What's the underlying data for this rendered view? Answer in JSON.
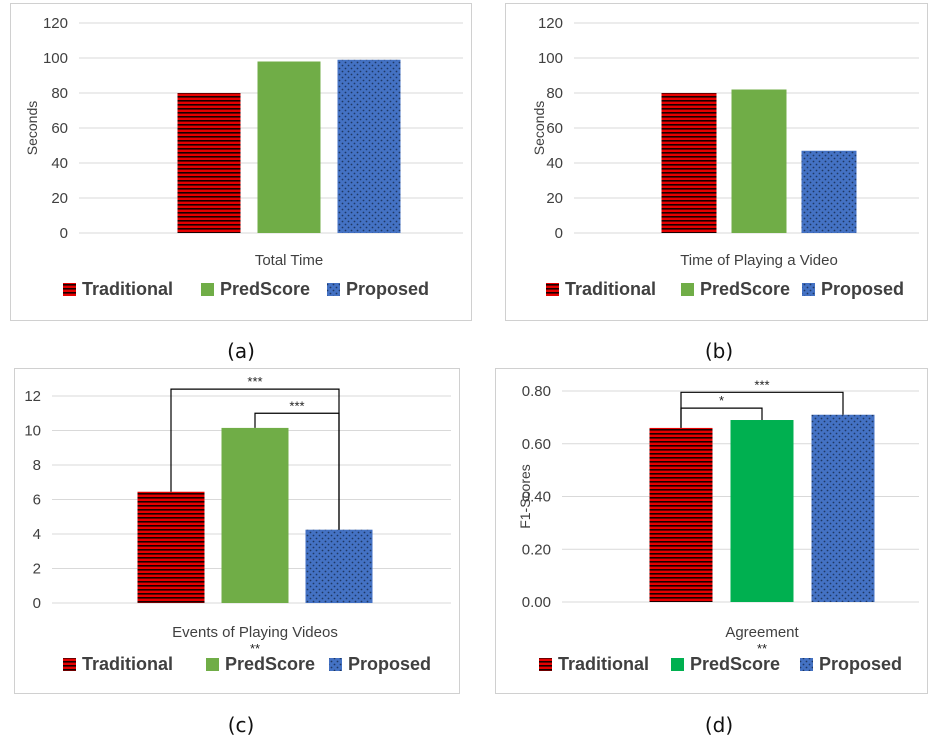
{
  "colors": {
    "traditional": "#e60000",
    "traditional_stripe": "#1a0000",
    "predscore": "#70ad47",
    "predscore_alt": "#00b050",
    "proposed": "#4472c4",
    "proposed_dot": "#1f3864",
    "grid": "#d9d9d9",
    "axis_text": "#404040"
  },
  "captions": [
    "(a)",
    "(b)",
    "(c)",
    "(d)"
  ],
  "chart_data": [
    {
      "type": "bar",
      "panel": "a",
      "categories": [
        "Total Time"
      ],
      "series": [
        {
          "name": "Traditional",
          "values": [
            80
          ]
        },
        {
          "name": "PredScore",
          "values": [
            98
          ]
        },
        {
          "name": "Proposed",
          "values": [
            99
          ]
        }
      ],
      "ylabel": "Seconds",
      "ylim": [
        0,
        120
      ],
      "yticks": [
        "0",
        "20",
        "40",
        "60",
        "80",
        "100",
        "120"
      ],
      "grid": true,
      "legend": "bottom",
      "annotations": []
    },
    {
      "type": "bar",
      "panel": "b",
      "categories": [
        "Time of Playing a Video"
      ],
      "series": [
        {
          "name": "Traditional",
          "values": [
            80
          ]
        },
        {
          "name": "PredScore",
          "values": [
            82
          ]
        },
        {
          "name": "Proposed",
          "values": [
            47
          ]
        }
      ],
      "ylabel": "Seconds",
      "ylim": [
        0,
        120
      ],
      "yticks": [
        "0",
        "20",
        "40",
        "60",
        "80",
        "100",
        "120"
      ],
      "grid": true,
      "legend": "bottom",
      "annotations": []
    },
    {
      "type": "bar",
      "panel": "c",
      "categories": [
        "Events of Playing Videos"
      ],
      "series": [
        {
          "name": "Traditional",
          "values": [
            6.45
          ]
        },
        {
          "name": "PredScore",
          "values": [
            10.15
          ]
        },
        {
          "name": "Proposed",
          "values": [
            4.25
          ]
        }
      ],
      "ylabel": "",
      "ylim": [
        0,
        12
      ],
      "yticks": [
        "0",
        "2",
        "4",
        "6",
        "8",
        "10",
        "12"
      ],
      "grid": true,
      "legend": "bottom",
      "category_note": "**",
      "annotations": [
        {
          "label": "***",
          "from": "Traditional",
          "to": "Proposed",
          "level": 12.4
        },
        {
          "label": "***",
          "from": "PredScore",
          "to": "Proposed",
          "level": 11.0
        }
      ]
    },
    {
      "type": "bar",
      "panel": "d",
      "categories": [
        "Agreement"
      ],
      "series": [
        {
          "name": "Traditional",
          "values": [
            0.66
          ]
        },
        {
          "name": "PredScore",
          "values": [
            0.69
          ]
        },
        {
          "name": "Proposed",
          "values": [
            0.71
          ]
        }
      ],
      "ylabel": "F1-Scores",
      "ylim": [
        0,
        0.8
      ],
      "yticks": [
        "0.00",
        "0.20",
        "0.40",
        "0.60",
        "0.80"
      ],
      "grid": true,
      "legend": "bottom",
      "category_note": "**",
      "annotations": [
        {
          "label": "*",
          "from": "Traditional",
          "to": "PredScore",
          "level": 0.735
        },
        {
          "label": "***",
          "from": "Traditional",
          "to": "Proposed",
          "level": 0.795
        }
      ]
    }
  ]
}
